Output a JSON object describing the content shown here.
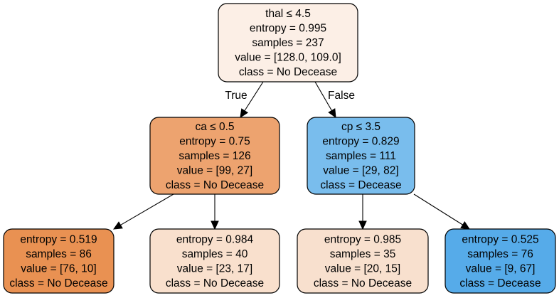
{
  "tree": {
    "nodes": [
      {
        "id": "root",
        "fill": "#fcefe6",
        "lines": [
          "thal ≤ 4.5",
          "entropy = 0.995",
          "samples = 237",
          "value = [128.0, 109.0]",
          "class = No Decease"
        ]
      },
      {
        "id": "left",
        "fill": "#eda36f",
        "lines": [
          "ca ≤ 0.5",
          "entropy = 0.75",
          "samples = 126",
          "value = [99, 27]",
          "class = No Decease"
        ]
      },
      {
        "id": "right",
        "fill": "#79bded",
        "lines": [
          "cp ≤ 3.5",
          "entropy = 0.829",
          "samples = 111",
          "value = [29, 82]",
          "class = Decease"
        ]
      },
      {
        "id": "leaf-1",
        "fill": "#e99152",
        "lines": [
          "entropy = 0.519",
          "samples = 86",
          "value = [76, 10]",
          "class = No Decease"
        ]
      },
      {
        "id": "leaf-2",
        "fill": "#f9e0cd",
        "lines": [
          "entropy = 0.984",
          "samples = 40",
          "value = [23, 17]",
          "class = No Decease"
        ]
      },
      {
        "id": "leaf-3",
        "fill": "#f8e0ce",
        "lines": [
          "entropy = 0.985",
          "samples = 35",
          "value = [20, 15]",
          "class = No Decease"
        ]
      },
      {
        "id": "leaf-4",
        "fill": "#56abe9",
        "lines": [
          "entropy = 0.525",
          "samples = 76",
          "value = [9, 67]",
          "class = Decease"
        ]
      }
    ],
    "edges": [
      {
        "from": "root",
        "to": "left",
        "label": "True"
      },
      {
        "from": "root",
        "to": "right",
        "label": "False"
      },
      {
        "from": "left",
        "to": "leaf-1",
        "label": ""
      },
      {
        "from": "left",
        "to": "leaf-2",
        "label": ""
      },
      {
        "from": "right",
        "to": "leaf-3",
        "label": ""
      },
      {
        "from": "right",
        "to": "leaf-4",
        "label": ""
      }
    ]
  }
}
